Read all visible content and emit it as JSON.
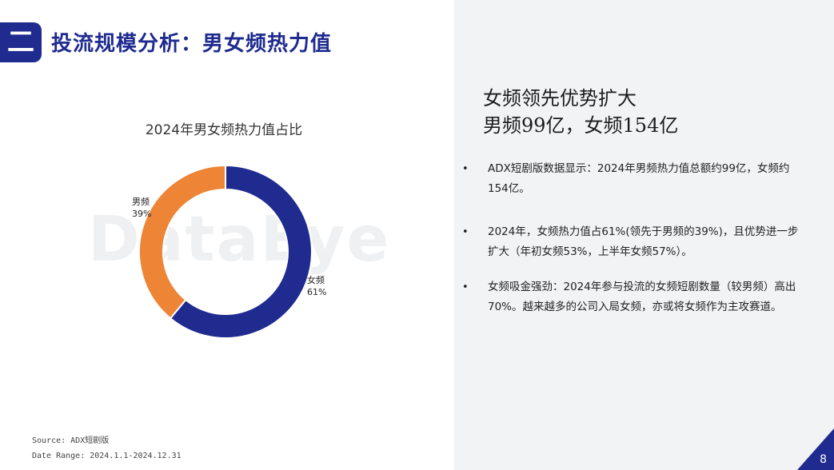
{
  "header": {
    "badge": "二",
    "title": "投流规模分析：男女频热力值"
  },
  "watermark": "DataEye",
  "colors": {
    "primary": "#1f2b8f",
    "female": "#1f2b8f",
    "male": "#ee8435",
    "panel": "#f2f3f5"
  },
  "chart_data": {
    "type": "pie",
    "title": "2024年男女频热力值占比",
    "donut": true,
    "slices": [
      {
        "name": "女频",
        "label": "61%",
        "value": 61,
        "color": "#1f2b8f"
      },
      {
        "name": "男频",
        "label": "39%",
        "value": 39,
        "color": "#ee8435"
      }
    ]
  },
  "insight": {
    "headline_line1": "女频领先优势扩大",
    "headline_line2": "男频99亿，女频154亿",
    "bullets": [
      "ADX短剧版数据显示：2024年男频热力值总额约99亿，女频约154亿。",
      "2024年，女频热力值占61%(领先于男频的39%)，且优势进一步扩大（年初女频53%，上半年女频57%）。",
      "女频吸金强劲：2024年参与投流的女频短剧数量（较男频）高出70%。越来越多的公司入局女频，亦或将女频作为主攻赛道。"
    ],
    "bullet_marker": "•"
  },
  "footer": {
    "source": "Source: ADX短剧版",
    "date_range": "Date Range: 2024.1.1-2024.12.31"
  },
  "page_number": "8"
}
